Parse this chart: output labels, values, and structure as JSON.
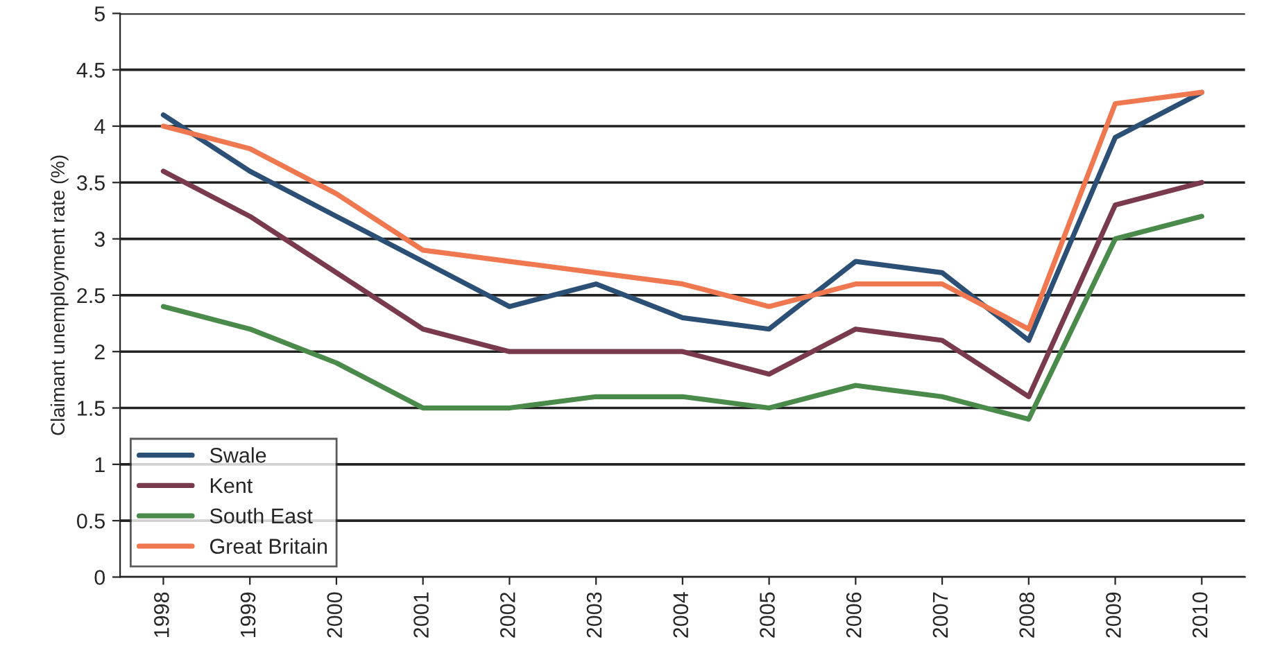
{
  "chart_data": {
    "type": "line",
    "ylabel": "Claimant unemployment rate (%)",
    "categories": [
      "1998",
      "1999",
      "2000",
      "2001",
      "2002",
      "2003",
      "2004",
      "2005",
      "2006",
      "2007",
      "2008",
      "2009",
      "2010"
    ],
    "series": [
      {
        "name": "Swale",
        "color": "#2b4f75",
        "values": [
          4.1,
          3.6,
          3.2,
          2.8,
          2.4,
          2.6,
          2.3,
          2.2,
          2.8,
          2.7,
          2.1,
          3.9,
          4.3
        ]
      },
      {
        "name": "Kent",
        "color": "#7a3a4e",
        "values": [
          3.6,
          3.2,
          2.7,
          2.2,
          2.0,
          2.0,
          2.0,
          1.8,
          2.2,
          2.1,
          1.6,
          3.3,
          3.5
        ]
      },
      {
        "name": "South East",
        "color": "#4a8a4a",
        "values": [
          2.4,
          2.2,
          1.9,
          1.5,
          1.5,
          1.6,
          1.6,
          1.5,
          1.7,
          1.6,
          1.4,
          3.0,
          3.2
        ]
      },
      {
        "name": "Great Britain",
        "color": "#f07850",
        "values": [
          4.0,
          3.8,
          3.4,
          2.9,
          2.8,
          2.7,
          2.6,
          2.4,
          2.6,
          2.6,
          2.2,
          4.2,
          4.3
        ]
      }
    ],
    "ylim": [
      0,
      5
    ],
    "yticks": [
      0,
      0.5,
      1,
      1.5,
      2,
      2.5,
      3,
      3.5,
      4,
      4.5,
      5
    ],
    "grid": "y",
    "legend": "bottom left",
    "line_style": "solid",
    "marker": "none"
  }
}
